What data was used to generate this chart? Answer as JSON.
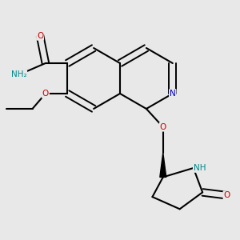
{
  "background_color": "#e8e8e8",
  "atom_colors": {
    "C": "#000000",
    "N": "#0000cc",
    "O": "#cc0000",
    "H": "#008888"
  },
  "figsize": [
    3.0,
    3.0
  ],
  "dpi": 100
}
